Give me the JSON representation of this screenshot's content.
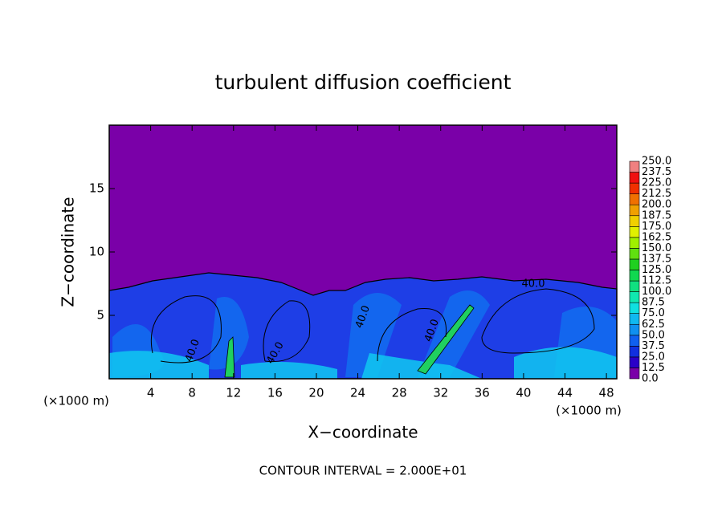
{
  "chart_data": {
    "type": "contour",
    "title": "turbulent diffusion coefficient",
    "x_label": "X−coordinate",
    "y_label": "Z−coordinate",
    "x_unit": "(×1000 m)",
    "y_unit": "(×1000 m)",
    "footer": "CONTOUR INTERVAL = 2.000E+01",
    "xlim": [
      0,
      49
    ],
    "xticks": [
      4,
      8,
      12,
      16,
      20,
      24,
      28,
      32,
      36,
      40,
      44,
      48
    ],
    "ylim": [
      0,
      20
    ],
    "yticks": [
      5,
      10,
      15
    ],
    "contour_labels": [
      "40.0",
      "40.0",
      "40.0",
      "40.0",
      "40.0"
    ],
    "colorbar": {
      "ticks": [
        {
          "value": 0,
          "label": "0.0"
        },
        12.5,
        {
          "value": 25,
          "label": "25.0"
        },
        37.5,
        {
          "value": 50,
          "label": "50.0"
        },
        62.5,
        {
          "value": 75,
          "label": "75.0"
        },
        87.5,
        {
          "value": 100,
          "label": "100.0"
        },
        112.5,
        {
          "value": 125,
          "label": "125.0"
        },
        137.5,
        {
          "value": 150,
          "label": "150.0"
        },
        162.5,
        {
          "value": 175,
          "label": "175.0"
        },
        187.5,
        {
          "value": 200,
          "label": "200.0"
        },
        212.5,
        {
          "value": 225,
          "label": "225.0"
        },
        237.5,
        {
          "value": 250,
          "label": "250.0"
        }
      ],
      "colors": [
        "#7a00a8",
        "#2a00c8",
        "#1030e0",
        "#1060f0",
        "#1090f0",
        "#10b8f0",
        "#10e0e0",
        "#10e8b0",
        "#10e080",
        "#10d850",
        "#20d020",
        "#60e010",
        "#a0f000",
        "#e0f000",
        "#f0d000",
        "#f0a000",
        "#f07000",
        "#f03000",
        "#f01010",
        "#f08080"
      ]
    }
  }
}
